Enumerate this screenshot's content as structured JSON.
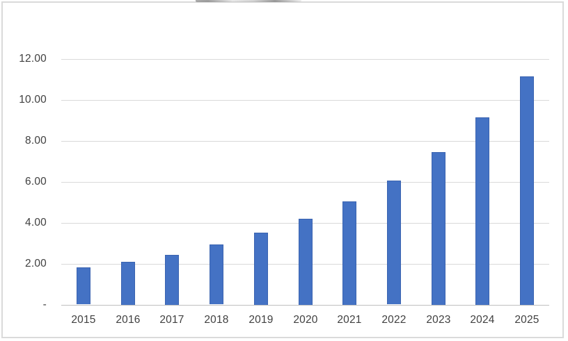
{
  "chart": {
    "bar_color": "#4472C4",
    "bar_border_color": "#3A63B0",
    "gridline_color": "#D9D9D9",
    "axis_line_color": "#BFBFBF",
    "label_color": "#404040",
    "frame_border_color": "#DADADA",
    "background_color": "#FFFFFF"
  },
  "chart_data": {
    "type": "bar",
    "title": "",
    "xlabel": "",
    "ylabel": "",
    "categories": [
      "2015",
      "2016",
      "2017",
      "2018",
      "2019",
      "2020",
      "2021",
      "2022",
      "2023",
      "2024",
      "2025"
    ],
    "values": [
      1.8,
      2.1,
      2.43,
      2.92,
      3.52,
      4.2,
      5.04,
      6.05,
      7.45,
      9.15,
      11.15
    ],
    "ylim": [
      0,
      12
    ],
    "ytick_interval": 2,
    "ytick_values": [
      0,
      2,
      4,
      6,
      8,
      10,
      12
    ],
    "ytick_labels": [
      "-",
      "2.00",
      "4.00",
      "6.00",
      "8.00",
      "10.00",
      "12.00"
    ],
    "grid": true,
    "legend": false,
    "series_name": ""
  }
}
